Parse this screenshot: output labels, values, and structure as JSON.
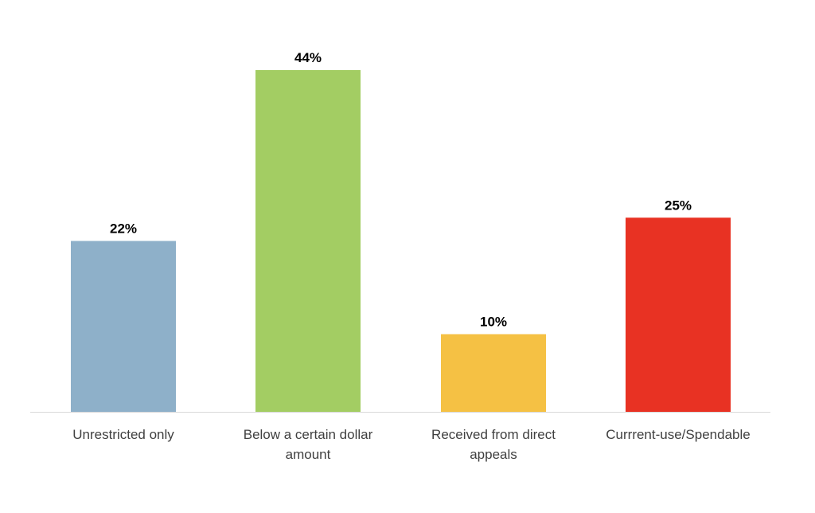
{
  "chart_data": {
    "type": "bar",
    "categories": [
      "Unrestricted only",
      "Below a certain dollar amount",
      "Received from direct appeals",
      "Currrent-use/Spendable"
    ],
    "category_lines": [
      [
        "Unrestricted only"
      ],
      [
        "Below a certain dollar",
        "amount"
      ],
      [
        "Received from direct",
        "appeals"
      ],
      [
        "Currrent-use/Spendable"
      ]
    ],
    "values": [
      22,
      44,
      10,
      25
    ],
    "value_labels": [
      "22%",
      "44%",
      "10%",
      "25%"
    ],
    "colors": [
      "#8eb0c9",
      "#a3cd63",
      "#f5c144",
      "#e83223"
    ],
    "ylim": [
      0,
      50
    ],
    "title": "",
    "xlabel": "",
    "ylabel": "",
    "grid": false,
    "legend": "none"
  }
}
